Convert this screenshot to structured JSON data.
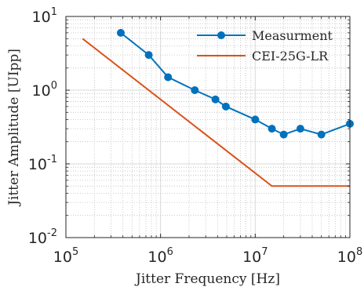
{
  "chart_data": {
    "type": "line",
    "xscale": "log",
    "yscale": "log",
    "xlim": [
      100000,
      100000000
    ],
    "ylim": [
      0.01,
      10
    ],
    "xlabel": "Jitter Frequency [Hz]",
    "ylabel": "Jitter Amplitude [UIpp]",
    "x_ticks": [
      {
        "base": "10",
        "exp": "5",
        "value": 100000
      },
      {
        "base": "10",
        "exp": "6",
        "value": 1000000
      },
      {
        "base": "10",
        "exp": "7",
        "value": 10000000
      },
      {
        "base": "10",
        "exp": "8",
        "value": 100000000
      }
    ],
    "y_ticks": [
      {
        "base": "10",
        "exp": "1",
        "value": 10
      },
      {
        "base": "10",
        "exp": "0",
        "value": 1
      },
      {
        "base": "10",
        "exp": "-1",
        "value": 0.1
      },
      {
        "base": "10",
        "exp": "-2",
        "value": 0.01
      }
    ],
    "grid": "major and minor",
    "legend_position": "top-right",
    "series": [
      {
        "name": "Measurment",
        "color": "#0072BD",
        "marker": "circle",
        "points": [
          [
            380000,
            6
          ],
          [
            750000,
            3
          ],
          [
            1200000,
            1.5
          ],
          [
            2300000,
            1.0
          ],
          [
            3800000,
            0.75
          ],
          [
            4900000,
            0.6
          ],
          [
            10000000,
            0.4
          ],
          [
            15000000,
            0.3
          ],
          [
            20000000,
            0.25
          ],
          [
            30000000,
            0.3
          ],
          [
            50000000,
            0.25
          ],
          [
            100000000,
            0.35
          ]
        ]
      },
      {
        "name": "CEI-25G-LR",
        "color": "#D95319",
        "marker": "none",
        "points": [
          [
            150000,
            5
          ],
          [
            15000000,
            0.05
          ],
          [
            100000000,
            0.05
          ]
        ]
      }
    ]
  }
}
